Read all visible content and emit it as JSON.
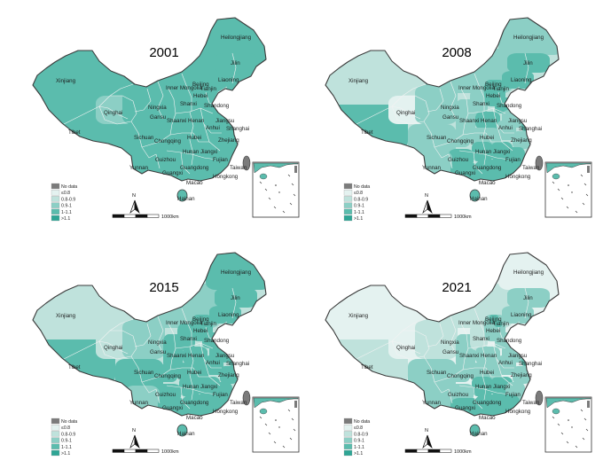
{
  "colors": {
    "no_data": "#7b7b7b",
    "c1": "#e4f2f0",
    "c2": "#bfe2dc",
    "c3": "#8ccfc5",
    "c4": "#5bbcad",
    "c5": "#2fa595",
    "outline": "#3b3b3b",
    "border": "#f3f3f3"
  },
  "legend": {
    "items": [
      {
        "label": "No data",
        "color_key": "no_data"
      },
      {
        "label": "≤0.8",
        "color_key": "c1"
      },
      {
        "label": "0.8-0.9",
        "color_key": "c2"
      },
      {
        "label": "0.9-1",
        "color_key": "c3"
      },
      {
        "label": "1-1.1",
        "color_key": "c4"
      },
      {
        "label": ">1.1",
        "color_key": "c5"
      }
    ]
  },
  "north_label": "N",
  "scale_label": "1000km",
  "provinces": [
    "Heilongjiang",
    "Jilin",
    "Liaoning",
    "Xinjiang",
    "Inner Mongolia",
    "Beijing",
    "Tianjin",
    "Hebei",
    "Shanxi",
    "Shandong",
    "Ningxia",
    "Qinghai",
    "Gansu",
    "Shaanxi",
    "Henan",
    "Jiangsu",
    "Anhui",
    "Shanghai",
    "Tibet",
    "Sichuan",
    "Chongqing",
    "Hubei",
    "Zhejiang",
    "Hunan",
    "Jiangxi",
    "Guizhou",
    "Fujian",
    "Yunnan",
    "Guangxi",
    "Guangdong",
    "Taiwan",
    "Hongkong",
    "Macao",
    "Hainan"
  ],
  "maps": [
    {
      "year": "2001",
      "values": {
        "Heilongjiang": "c4",
        "Jilin": "c4",
        "Liaoning": "c4",
        "Xinjiang": "c4",
        "Inner Mongolia": "c4",
        "Beijing": "c4",
        "Tianjin": "c4",
        "Hebei": "c4",
        "Shanxi": "c4",
        "Shandong": "c4",
        "Ningxia": "c4",
        "Qinghai": "c3",
        "Gansu": "c4",
        "Shaanxi": "c4",
        "Henan": "c4",
        "Jiangsu": "c4",
        "Anhui": "c4",
        "Shanghai": "c4",
        "Tibet": "c4",
        "Sichuan": "c4",
        "Chongqing": "c4",
        "Hubei": "c4",
        "Zhejiang": "c4",
        "Hunan": "c4",
        "Jiangxi": "c4",
        "Guizhou": "c4",
        "Fujian": "c4",
        "Yunnan": "c4",
        "Guangxi": "c4",
        "Guangdong": "c4",
        "Taiwan": "no_data",
        "Hongkong": "c4",
        "Macao": "c4",
        "Hainan": "c4"
      }
    },
    {
      "year": "2008",
      "values": {
        "Heilongjiang": "c3",
        "Jilin": "c4",
        "Liaoning": "c4",
        "Xinjiang": "c2",
        "Inner Mongolia": "c3",
        "Beijing": "c4",
        "Tianjin": "c4",
        "Hebei": "c4",
        "Shanxi": "c3",
        "Shandong": "c4",
        "Ningxia": "c3",
        "Qinghai": "c1",
        "Gansu": "c3",
        "Shaanxi": "c3",
        "Henan": "c4",
        "Jiangsu": "c3",
        "Anhui": "c3",
        "Shanghai": "c4",
        "Tibet": "c4",
        "Sichuan": "c3",
        "Chongqing": "c3",
        "Hubei": "c3",
        "Zhejiang": "c3",
        "Hunan": "c4",
        "Jiangxi": "c4",
        "Guizhou": "c4",
        "Fujian": "c4",
        "Yunnan": "c3",
        "Guangxi": "c4",
        "Guangdong": "c4",
        "Taiwan": "no_data",
        "Hongkong": "c4",
        "Macao": "c4",
        "Hainan": "c4"
      }
    },
    {
      "year": "2015",
      "values": {
        "Heilongjiang": "c4",
        "Jilin": "c4",
        "Liaoning": "c4",
        "Xinjiang": "c2",
        "Inner Mongolia": "c3",
        "Beijing": "c4",
        "Tianjin": "c4",
        "Hebei": "c4",
        "Shanxi": "c4",
        "Shandong": "c4",
        "Ningxia": "c3",
        "Qinghai": "c2",
        "Gansu": "c3",
        "Shaanxi": "c4",
        "Henan": "c4",
        "Jiangsu": "c4",
        "Anhui": "c4",
        "Shanghai": "c4",
        "Tibet": "c4",
        "Sichuan": "c4",
        "Chongqing": "c4",
        "Hubei": "c4",
        "Zhejiang": "c4",
        "Hunan": "c4",
        "Jiangxi": "c4",
        "Guizhou": "c4",
        "Fujian": "c4",
        "Yunnan": "c3",
        "Guangxi": "c4",
        "Guangdong": "c4",
        "Taiwan": "no_data",
        "Hongkong": "c4",
        "Macao": "c4",
        "Hainan": "c4"
      }
    },
    {
      "year": "2021",
      "values": {
        "Heilongjiang": "c1",
        "Jilin": "c3",
        "Liaoning": "c3",
        "Xinjiang": "c1",
        "Inner Mongolia": "c2",
        "Beijing": "c4",
        "Tianjin": "c4",
        "Hebei": "c3",
        "Shanxi": "c2",
        "Shandong": "c3",
        "Ningxia": "c2",
        "Qinghai": "c1",
        "Gansu": "c2",
        "Shaanxi": "c3",
        "Henan": "c3",
        "Jiangsu": "c3",
        "Anhui": "c3",
        "Shanghai": "c4",
        "Tibet": "c2",
        "Sichuan": "c3",
        "Chongqing": "c3",
        "Hubei": "c3",
        "Zhejiang": "c3",
        "Hunan": "c4",
        "Jiangxi": "c4",
        "Guizhou": "c3",
        "Fujian": "c3",
        "Yunnan": "c3",
        "Guangxi": "c4",
        "Guangdong": "c4",
        "Taiwan": "no_data",
        "Hongkong": "c4",
        "Macao": "c4",
        "Hainan": "c4"
      }
    }
  ]
}
